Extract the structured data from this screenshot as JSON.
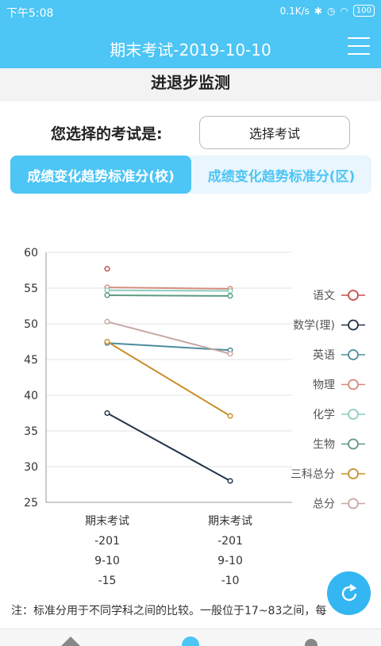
{
  "status_bar": {
    "time": "下午5:08",
    "speed": "0.1K/s",
    "battery": "100"
  },
  "header": {
    "title": "期末考试-2019-10-10"
  },
  "subheader": {
    "title": "进退步监测"
  },
  "exam_select": {
    "label": "您选择的考试是:",
    "button": "选择考试"
  },
  "tabs": [
    {
      "label": "成绩变化趋势标准分(校)",
      "active": true
    },
    {
      "label": "成绩变化趋势标准分(区)",
      "active": false
    }
  ],
  "chart_data": {
    "type": "line",
    "categories": [
      [
        "期末考试",
        "-201",
        "9-10",
        "-15"
      ],
      [
        "期末考试",
        "-201",
        "9-10",
        "-10"
      ]
    ],
    "ylim": [
      25,
      60
    ],
    "yticks": [
      25,
      30,
      35,
      40,
      45,
      50,
      55,
      60
    ],
    "grid": true,
    "legend_position": "right",
    "series": [
      {
        "name": "语文",
        "color": "#c0504d",
        "values": [
          57.7,
          null
        ]
      },
      {
        "name": "数学(理)",
        "color": "#243447",
        "values": [
          37.5,
          28.0
        ]
      },
      {
        "name": "英语",
        "color": "#4c8c9c",
        "values": [
          47.3,
          46.3
        ]
      },
      {
        "name": "物理",
        "color": "#d48c7c",
        "values": [
          55.1,
          54.9
        ]
      },
      {
        "name": "化学",
        "color": "#8fcbbf",
        "values": [
          54.7,
          54.6
        ]
      },
      {
        "name": "生物",
        "color": "#5e9a7e",
        "values": [
          54.0,
          53.9
        ]
      },
      {
        "name": "三科总分",
        "color": "#c8902b",
        "values": [
          47.5,
          37.1
        ]
      },
      {
        "name": "总分",
        "color": "#c7a8a4",
        "values": [
          50.3,
          45.8
        ]
      }
    ]
  },
  "note": "注：标准分用于不同学科之间的比较。一般位于17~83之间，每",
  "colors": {
    "primary": "#4dc5f5"
  },
  "icons": {
    "fab": "refresh-icon"
  }
}
